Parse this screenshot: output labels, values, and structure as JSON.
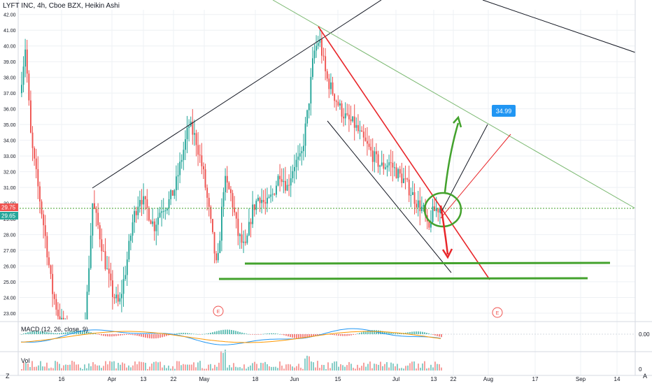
{
  "header": {
    "title": "LYFT INC, 4h, Cboe BZX, Heikin Ashi"
  },
  "indicators": {
    "macd_label": "MACD (12, 26, close, 9)",
    "macd_zero": "0.00",
    "vol_label": "Vol",
    "vol_zero": "0"
  },
  "corner": {
    "left": "Z",
    "right": "A"
  },
  "colors": {
    "up": "#26a69a",
    "down": "#ef5350",
    "grid": "#eef0f4",
    "red_line": "#e8262a",
    "green_marker": "#43a22d",
    "thin_green": "#7ab870",
    "price_up_tag": "#26a69a",
    "price_down_tag": "#ef5350",
    "target_tag": "#2196f3",
    "macd_blue": "#2196f3",
    "macd_orange": "#ff9800"
  },
  "chart_data": {
    "type": "candlestick",
    "title": "LYFT INC, 4h, Cboe BZX, Heikin Ashi",
    "price_axis": {
      "ticks": [
        "42.00",
        "41.00",
        "40.00",
        "39.00",
        "38.00",
        "37.00",
        "36.00",
        "35.00",
        "34.00",
        "33.00",
        "32.00",
        "31.00",
        "30.00",
        "29.00",
        "28.00",
        "27.00",
        "26.00",
        "25.00",
        "24.00",
        "23.00"
      ],
      "ylim": [
        22.6,
        42.3
      ],
      "current_price": "29.75",
      "second_price": "29.65"
    },
    "time_axis": {
      "labels": [
        "16",
        "Apr",
        "13",
        "22",
        "May",
        "18",
        "Jun",
        "15",
        "Jul",
        "13",
        "22",
        "Aug",
        "17",
        "Sep",
        "14"
      ]
    },
    "events": [
      "E",
      "E"
    ],
    "annotations": {
      "target_label": "34.99"
    },
    "candles_up_share": 0.5
  }
}
